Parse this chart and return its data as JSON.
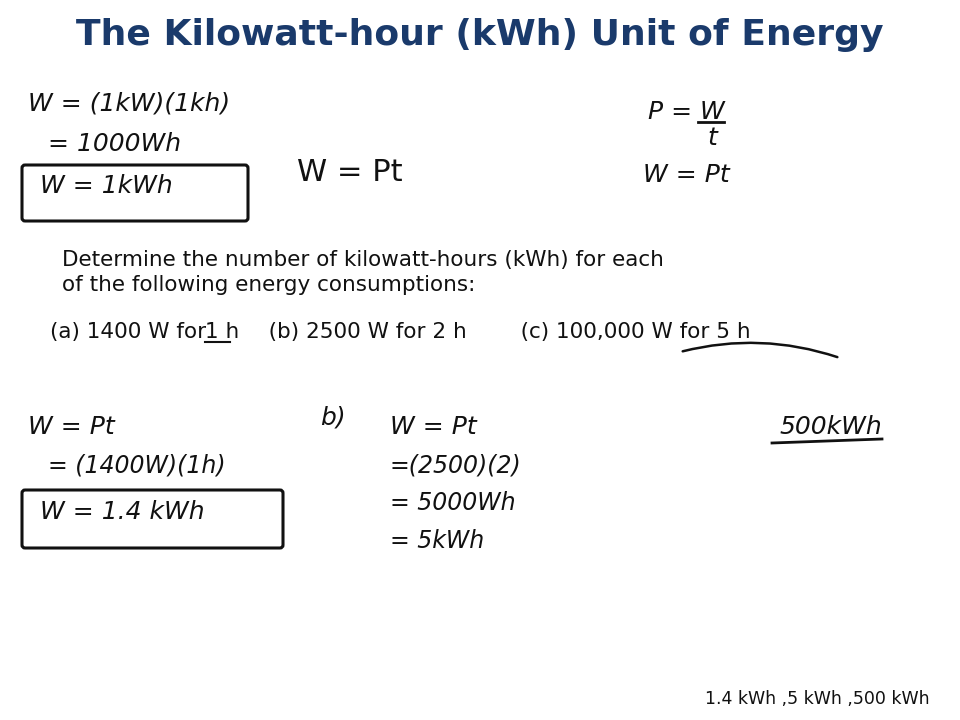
{
  "title": "The Kilowatt-hour (kWh) Unit of Energy",
  "title_color": "#1a3a6b",
  "title_fontsize": 26,
  "bg_color": "#ffffff",
  "body_text_color": "#111111",
  "bottom_note": "1.4 kWh ,5 kWh ,500 kWh",
  "determine_line1": "Determine the number of kilowatt-hours (kWh) for each",
  "determine_line2": "of the following energy consumptions:",
  "wpt_center": "W = Pt",
  "top_left": [
    "W = (1kW)(1kh)",
    "  = 1000Wh",
    "W = 1kWh"
  ],
  "top_right_p": "P =",
  "top_right_wt": "W",
  "top_right_t": "t",
  "top_right_wpt": "W = Pt",
  "prob_a": "(a) 1400 W for ",
  "prob_a_1h": "1 h",
  "prob_b": "   (b) 2500 W for 2 h",
  "prob_c": "   (c) 100,000 W for 5 h",
  "sol_a": [
    "W = Pt",
    "  = (1400W)(1h)",
    "W = 1.4 kWh"
  ],
  "sol_b_label": "b)",
  "sol_b": [
    "W = Pt",
    "=(2500)(2)",
    "= 5000Wh",
    "= 5kWh"
  ],
  "sol_c_label": "500kWh",
  "underline_c": true
}
